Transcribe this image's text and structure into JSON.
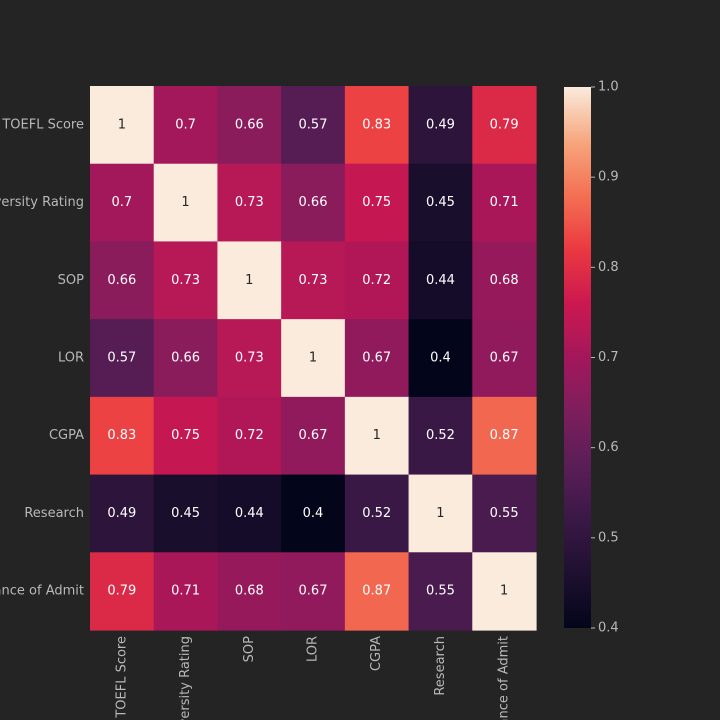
{
  "chart_data": {
    "type": "heatmap",
    "title": "",
    "xlabel": "",
    "ylabel": "",
    "variables": [
      "TOEFL Score",
      "University Rating",
      "SOP",
      "LOR",
      "CGPA",
      "Research",
      "Chance of Admit"
    ],
    "matrix": [
      [
        1,
        0.7,
        0.66,
        0.57,
        0.83,
        0.49,
        0.79
      ],
      [
        0.7,
        1,
        0.73,
        0.66,
        0.75,
        0.45,
        0.71
      ],
      [
        0.66,
        0.73,
        1,
        0.73,
        0.72,
        0.44,
        0.68
      ],
      [
        0.57,
        0.66,
        0.73,
        1,
        0.67,
        0.4,
        0.67
      ],
      [
        0.83,
        0.75,
        0.72,
        0.67,
        1,
        0.52,
        0.87
      ],
      [
        0.49,
        0.45,
        0.44,
        0.4,
        0.52,
        1,
        0.55
      ],
      [
        0.79,
        0.71,
        0.68,
        0.67,
        0.87,
        0.55,
        1
      ]
    ],
    "value_range": [
      0.4,
      1.0
    ],
    "colorbar_ticks": [
      "0.4",
      "0.5",
      "0.6",
      "0.7",
      "0.8",
      "0.9",
      "1.0"
    ],
    "colormap": "rocket",
    "annotate": true,
    "grid": false,
    "legend": "right colorbar"
  }
}
